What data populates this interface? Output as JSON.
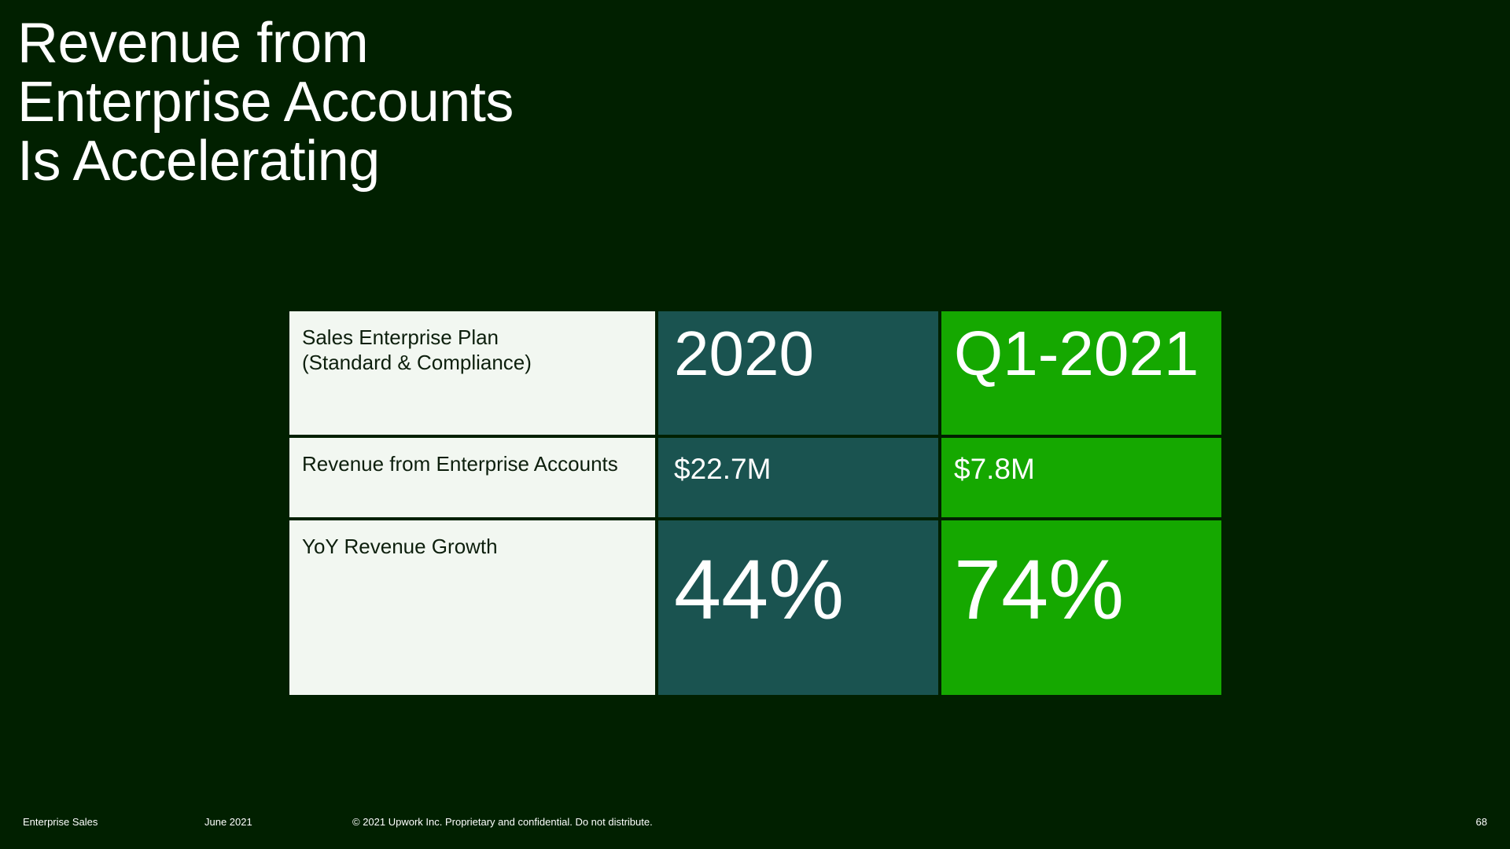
{
  "title_lines": [
    "Revenue from",
    "Enterprise Accounts",
    "Is Accelerating"
  ],
  "table": {
    "header": {
      "label_line1": "Sales Enterprise Plan",
      "label_line2": "(Standard & Compliance)",
      "col1": "2020",
      "col2": "Q1-2021"
    },
    "rows": [
      {
        "label": "Revenue from Enterprise Accounts",
        "col1": "$22.7M",
        "col2": "$7.8M"
      },
      {
        "label": "YoY Revenue Growth",
        "col1": "44%",
        "col2": "74%"
      }
    ]
  },
  "colors": {
    "background": "#012000",
    "label_cell": "#f2f7f1",
    "col_2020": "#1a5350",
    "col_q1_2021": "#15a800"
  },
  "footer": {
    "section": "Enterprise Sales",
    "date": "June 2021",
    "copyright": "© 2021 Upwork Inc. Proprietary and confidential. Do not distribute.",
    "page_number": "68"
  }
}
